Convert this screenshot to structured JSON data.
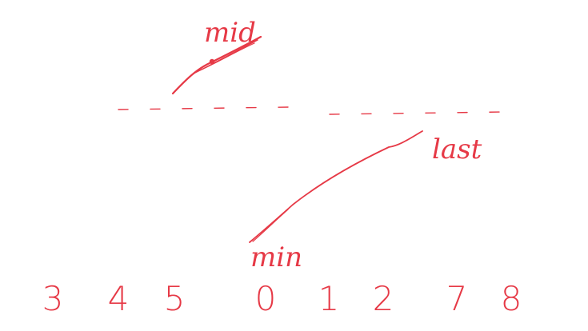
{
  "colors": {
    "ink": "#e63946"
  },
  "labels": {
    "mid": "mid",
    "last": "last",
    "min": "min"
  },
  "numbers": [
    "3",
    "4",
    "5",
    "0",
    "1",
    "2",
    "7",
    "8"
  ]
}
